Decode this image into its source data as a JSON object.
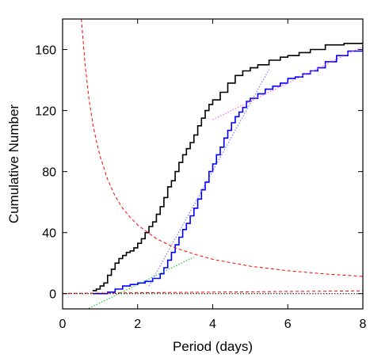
{
  "chart_data": {
    "type": "line",
    "title": "",
    "xlabel": "Period (days)",
    "ylabel": "Cumulative Number",
    "xlim": [
      0,
      8
    ],
    "ylim": [
      -10,
      180
    ],
    "xticks": [
      0,
      2,
      4,
      6,
      8
    ],
    "yticks": [
      0,
      40,
      80,
      120,
      160
    ],
    "xtick_labels": [
      "0",
      "2",
      "4",
      "6",
      "8"
    ],
    "ytick_labels": [
      "0",
      "40",
      "80",
      "120",
      "160"
    ],
    "grid": false,
    "legend": "none",
    "series": [
      {
        "color": "#000000",
        "style": "solid-step",
        "x": [
          0.8,
          0.9,
          1.0,
          1.1,
          1.2,
          1.3,
          1.4,
          1.5,
          1.6,
          1.7,
          1.8,
          1.9,
          2.0,
          2.1,
          2.2,
          2.3,
          2.4,
          2.5,
          2.6,
          2.7,
          2.8,
          2.9,
          3.0,
          3.1,
          3.2,
          3.3,
          3.4,
          3.5,
          3.6,
          3.7,
          3.8,
          3.9,
          4.0,
          4.2,
          4.4,
          4.6,
          4.8,
          5.0,
          5.2,
          5.5,
          5.8,
          6.0,
          6.3,
          6.6,
          7.0,
          7.5,
          8.0
        ],
        "y": [
          2,
          3,
          5,
          7,
          12,
          16,
          20,
          23,
          25,
          27,
          28,
          30,
          33,
          36,
          40,
          44,
          47,
          52,
          57,
          63,
          70,
          74,
          80,
          86,
          91,
          95,
          99,
          104,
          110,
          115,
          120,
          124,
          127,
          132,
          138,
          143,
          146,
          148,
          150,
          153,
          155,
          156,
          158,
          160,
          163,
          164,
          165
        ]
      },
      {
        "color": "#0000ff",
        "style": "solid-step",
        "x": [
          0.8,
          1.0,
          1.2,
          1.4,
          1.6,
          1.8,
          2.0,
          2.2,
          2.4,
          2.6,
          2.7,
          2.8,
          2.9,
          3.0,
          3.1,
          3.2,
          3.3,
          3.4,
          3.5,
          3.6,
          3.7,
          3.8,
          3.9,
          4.0,
          4.1,
          4.2,
          4.3,
          4.4,
          4.5,
          4.6,
          4.7,
          4.8,
          4.9,
          5.0,
          5.2,
          5.4,
          5.6,
          5.8,
          6.0,
          6.2,
          6.4,
          6.6,
          6.8,
          7.0,
          7.3,
          7.6,
          8.0
        ],
        "y": [
          0,
          0,
          1,
          3,
          5,
          6,
          7,
          8,
          10,
          13,
          17,
          22,
          27,
          32,
          37,
          42,
          46,
          51,
          56,
          62,
          68,
          73,
          80,
          85,
          91,
          96,
          102,
          107,
          112,
          116,
          119,
          122,
          126,
          128,
          131,
          134,
          136,
          138,
          141,
          142,
          144,
          146,
          148,
          152,
          156,
          159,
          163
        ]
      },
      {
        "color": "#ff0000",
        "style": "dashed",
        "x": [
          0.5,
          0.6,
          0.7,
          0.8,
          0.9,
          1.0,
          1.2,
          1.4,
          1.6,
          1.8,
          2.0,
          2.5,
          3.0,
          3.5,
          4.0,
          5.0,
          6.0,
          7.0,
          8.0
        ],
        "y": [
          180,
          150,
          128,
          112,
          100,
          90,
          75,
          64,
          56,
          50,
          45,
          36,
          30,
          26,
          22.5,
          18,
          15,
          12.9,
          11.3
        ]
      },
      {
        "color": "#ff0000",
        "style": "dashed",
        "x": [
          0.0,
          1.0,
          2.0,
          3.0,
          4.0,
          5.0,
          6.0,
          7.0,
          8.0
        ],
        "y": [
          0.2,
          0.4,
          0.6,
          0.8,
          1.0,
          1.2,
          1.4,
          1.6,
          1.8
        ]
      },
      {
        "color": "#00bb00",
        "style": "dotted",
        "x": [
          0.5,
          3.5
        ],
        "y": [
          -12,
          24
        ]
      },
      {
        "color": "#6666ff",
        "style": "dotted",
        "x": [
          2.3,
          5.5
        ],
        "y": [
          5,
          147
        ]
      },
      {
        "color": "#ff44ff",
        "style": "dotted",
        "x": [
          4.0,
          8.0
        ],
        "y": [
          114,
          162
        ]
      },
      {
        "color": "#000000",
        "style": "dotted",
        "x": [
          0.0,
          8.0
        ],
        "y": [
          0,
          0
        ]
      }
    ]
  }
}
